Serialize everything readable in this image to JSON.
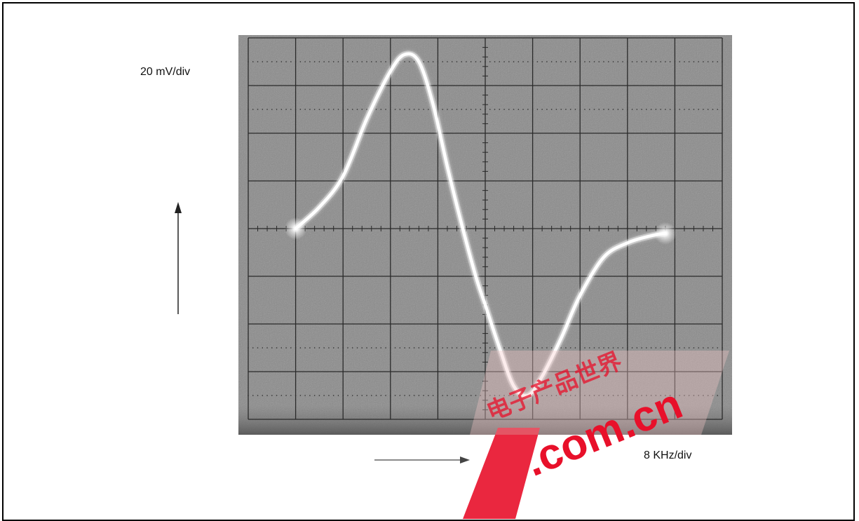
{
  "chart_data": {
    "type": "line",
    "ylabel": "20 mV/div",
    "xlabel": "8 KHz/div",
    "grid": true,
    "x_divisions": 10,
    "y_divisions": 8,
    "x_unit": "div",
    "y_unit": "div",
    "xlim": [
      0,
      10
    ],
    "ylim": [
      -4,
      4
    ],
    "series": [
      {
        "x": [
          1.0,
          1.5,
          2.0,
          2.5,
          3.0,
          3.3,
          3.6,
          3.9,
          4.2,
          4.5,
          4.8,
          5.0,
          5.3,
          5.6,
          5.9,
          6.2,
          6.6,
          7.0,
          7.5,
          8.0,
          8.5,
          8.8
        ],
        "y": [
          0.0,
          0.45,
          1.1,
          2.3,
          3.3,
          3.65,
          3.5,
          2.6,
          1.3,
          0.1,
          -1.0,
          -1.6,
          -2.5,
          -3.3,
          -3.5,
          -3.1,
          -2.3,
          -1.4,
          -0.6,
          -0.3,
          -0.15,
          -0.1
        ]
      }
    ],
    "colors": {
      "screen": "#8a8a8a",
      "grid": "#2a2a2a",
      "trace": "#ffffff"
    }
  },
  "watermark": {
    "cn_text": "电子产品世界",
    "domain_text": ".com.cn"
  }
}
